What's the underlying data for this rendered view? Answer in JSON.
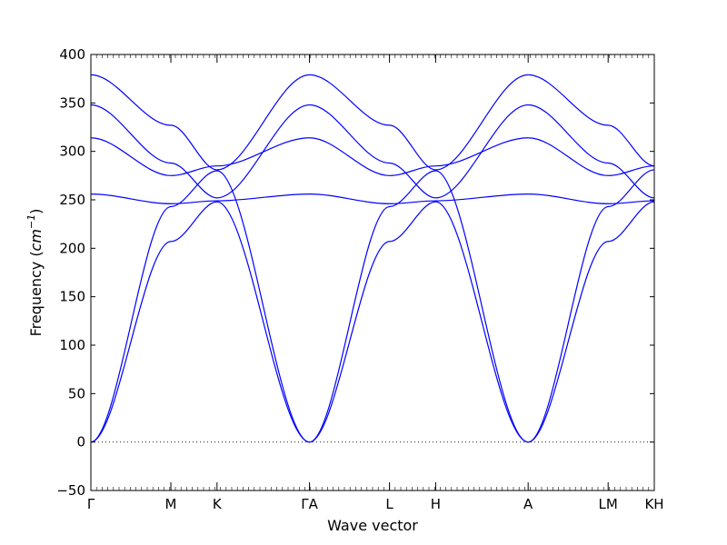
{
  "chart_data": {
    "type": "line",
    "xlabel": "Wave vector",
    "ylabel": {
      "prefix": "Frequency (",
      "unit_base": "cm",
      "unit_exp": "−1",
      "suffix": ")"
    },
    "ylim": [
      -50,
      400
    ],
    "yticks": [
      -50,
      0,
      50,
      100,
      150,
      200,
      250,
      300,
      350,
      400
    ],
    "grid": false,
    "zero_line": true,
    "line_color": "#0000ff",
    "q_points": [
      {
        "label": "Γ",
        "x": 0.0
      },
      {
        "label": "M",
        "x": 0.577
      },
      {
        "label": "K",
        "x": 0.91
      },
      {
        "label": "ΓA",
        "x": 1.577
      },
      {
        "label": "L",
        "x": 2.154
      },
      {
        "label": "H",
        "x": 2.487
      },
      {
        "label": "A",
        "x": 3.154
      },
      {
        "label": "LM",
        "x": 3.731
      },
      {
        "label": "KH",
        "x": 4.064
      }
    ],
    "series": [
      {
        "x": [
          0.0,
          0.577,
          0.91,
          1.577
        ],
        "values": [
          0,
          207,
          248,
          0
        ]
      },
      {
        "x": [
          0.0,
          0.577,
          0.91,
          1.577
        ],
        "values": [
          0,
          243,
          280,
          0
        ]
      },
      {
        "x": [
          0.0,
          0.577,
          0.91,
          1.577
        ],
        "values": [
          256,
          246,
          249,
          256
        ]
      },
      {
        "x": [
          0.0,
          0.577,
          0.91,
          1.577
        ],
        "values": [
          314,
          275,
          285,
          314
        ]
      },
      {
        "x": [
          0.0,
          0.577,
          0.91,
          1.577
        ],
        "values": [
          348,
          288,
          252,
          348
        ]
      },
      {
        "x": [
          0.0,
          0.577,
          0.91,
          1.577
        ],
        "values": [
          379,
          327,
          281,
          379
        ]
      },
      {
        "x": [
          1.577,
          2.154,
          2.487,
          3.154
        ],
        "values": [
          0,
          207,
          248,
          0
        ]
      },
      {
        "x": [
          1.577,
          2.154,
          2.487,
          3.154
        ],
        "values": [
          0,
          243,
          280,
          0
        ]
      },
      {
        "x": [
          1.577,
          2.154,
          2.487,
          3.154
        ],
        "values": [
          256,
          246,
          249,
          256
        ]
      },
      {
        "x": [
          1.577,
          2.154,
          2.487,
          3.154
        ],
        "values": [
          314,
          275,
          285,
          314
        ]
      },
      {
        "x": [
          1.577,
          2.154,
          2.487,
          3.154
        ],
        "values": [
          348,
          288,
          252,
          348
        ]
      },
      {
        "x": [
          1.577,
          2.154,
          2.487,
          3.154
        ],
        "values": [
          379,
          327,
          281,
          379
        ]
      },
      {
        "x": [
          3.154,
          3.731,
          4.064
        ],
        "values": [
          0,
          207,
          248
        ]
      },
      {
        "x": [
          3.154,
          3.731,
          4.064
        ],
        "values": [
          0,
          243,
          281
        ]
      },
      {
        "x": [
          3.154,
          3.731,
          4.064
        ],
        "values": [
          256,
          246,
          249
        ]
      },
      {
        "x": [
          3.154,
          3.731,
          4.064
        ],
        "values": [
          314,
          275,
          285
        ]
      },
      {
        "x": [
          3.154,
          3.731,
          4.064
        ],
        "values": [
          348,
          288,
          252
        ]
      },
      {
        "x": [
          3.154,
          3.731,
          4.064
        ],
        "values": [
          379,
          327,
          285
        ]
      }
    ]
  }
}
